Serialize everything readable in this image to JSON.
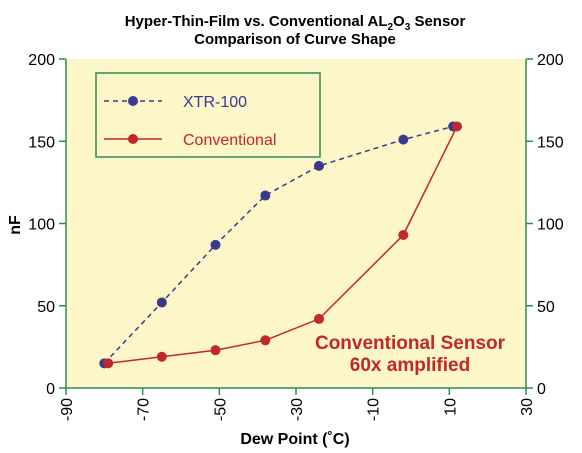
{
  "chart_data": {
    "type": "line",
    "title_line1_main": "Hyper-Thin-Film vs. Conventional AL",
    "title_sub1": "2",
    "title_mid": "O",
    "title_sub2": "3",
    "title_end": " Sensor",
    "title_line2": "Comparison of Curve Shape",
    "xlabel": "Dew Point (˚C)",
    "ylabel": "nF",
    "xlim": [
      -90,
      30
    ],
    "ylim": [
      0,
      200
    ],
    "xticks": [
      "-90",
      "-70",
      "-50",
      "-30",
      "-10",
      "10",
      "30"
    ],
    "xtick_values": [
      -90,
      -70,
      -50,
      -30,
      -10,
      10,
      30
    ],
    "yticks": [
      "0",
      "50",
      "100",
      "150",
      "200"
    ],
    "ytick_values": [
      0,
      50,
      100,
      150,
      200
    ],
    "series": [
      {
        "name": "XTR-100",
        "color": "#3a3a8c",
        "style": "dashed",
        "x": [
          -80,
          -65,
          -51,
          -38,
          -24,
          -2,
          11
        ],
        "y": [
          15,
          52,
          87,
          117,
          135,
          151,
          159
        ]
      },
      {
        "name": "Conventional",
        "color": "#c0282d",
        "style": "solid",
        "x": [
          -79,
          -65,
          -51,
          -38,
          -24,
          -2,
          12
        ],
        "y": [
          15,
          19,
          23,
          29,
          42,
          93,
          159
        ]
      }
    ],
    "annotation": [
      "Conventional Sensor",
      "60x amplified"
    ],
    "annotation_color": "#c0282d",
    "plot_background": "#fdf6c9",
    "axis_color": "#2e8b57",
    "legend_position": "top-left"
  }
}
